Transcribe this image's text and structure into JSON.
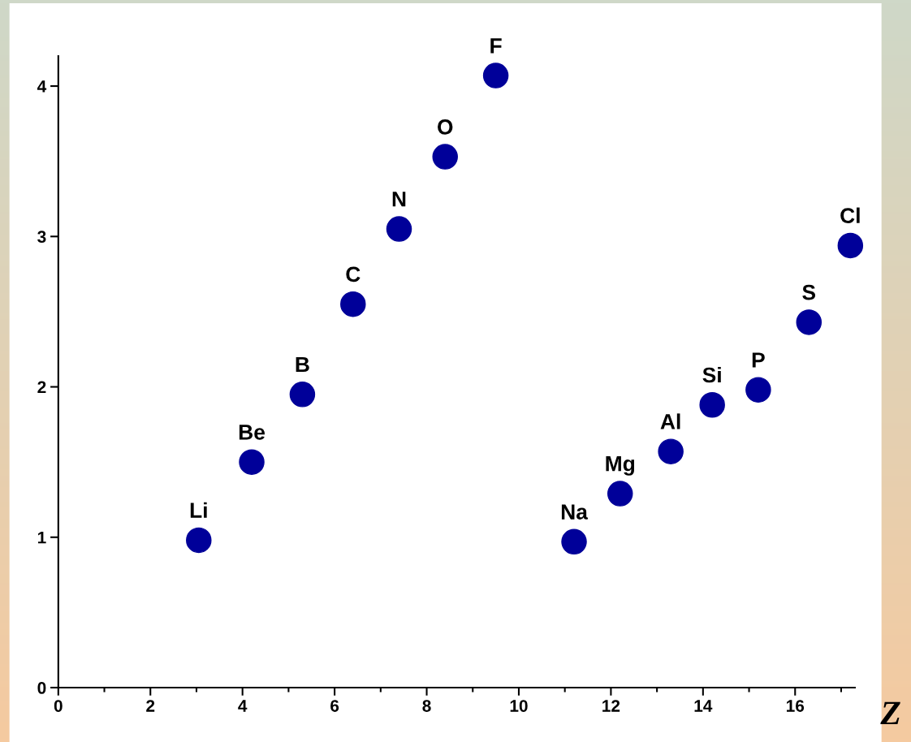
{
  "chart_data": {
    "type": "scatter",
    "xlabel": "Z",
    "x": [
      3.05,
      4.2,
      5.3,
      6.4,
      7.4,
      8.4,
      9.5,
      11.2,
      12.2,
      13.3,
      14.2,
      15.2,
      16.3,
      17.2
    ],
    "series": [
      {
        "color": "#000099",
        "values": [
          0.98,
          1.5,
          1.95,
          2.55,
          3.05,
          3.53,
          4.07,
          0.97,
          1.29,
          1.57,
          1.88,
          1.98,
          2.43,
          2.94
        ]
      }
    ],
    "annotations": [
      {
        "text": "Li",
        "x": 3.05,
        "y": 0.98
      },
      {
        "text": "Be",
        "x": 4.2,
        "y": 1.5
      },
      {
        "text": "B",
        "x": 5.3,
        "y": 1.95
      },
      {
        "text": "C",
        "x": 6.4,
        "y": 2.55
      },
      {
        "text": "N",
        "x": 7.4,
        "y": 3.05
      },
      {
        "text": "O",
        "x": 8.4,
        "y": 3.53
      },
      {
        "text": "F",
        "x": 9.5,
        "y": 4.07
      },
      {
        "text": "Na",
        "x": 11.2,
        "y": 0.97
      },
      {
        "text": "Mg",
        "x": 12.2,
        "y": 1.29
      },
      {
        "text": "Al",
        "x": 13.3,
        "y": 1.57
      },
      {
        "text": "Si",
        "x": 14.2,
        "y": 1.88
      },
      {
        "text": "P",
        "x": 15.2,
        "y": 1.98
      },
      {
        "text": "S",
        "x": 16.3,
        "y": 2.43
      },
      {
        "text": "Cl",
        "x": 17.2,
        "y": 2.94
      }
    ],
    "xlim": [
      0,
      17.3
    ],
    "ylim": [
      0,
      4.2
    ],
    "xticks": [
      0,
      2,
      4,
      6,
      8,
      10,
      12,
      14,
      16
    ],
    "yticks": [
      0,
      1,
      2,
      3,
      4
    ],
    "marker": "circle",
    "grid": false,
    "legend": false
  }
}
